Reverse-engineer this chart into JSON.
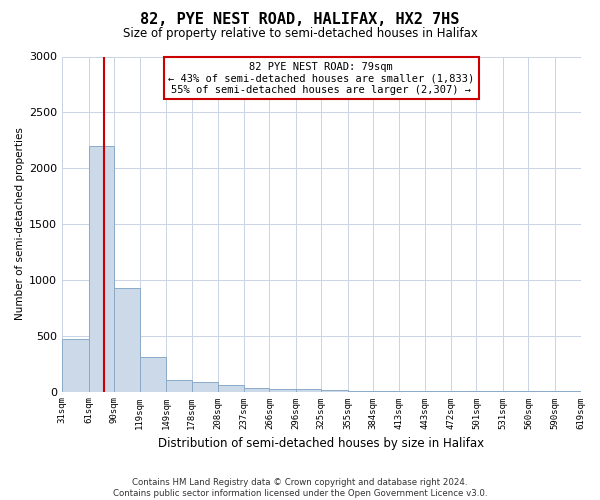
{
  "title": "82, PYE NEST ROAD, HALIFAX, HX2 7HS",
  "subtitle": "Size of property relative to semi-detached houses in Halifax",
  "xlabel": "Distribution of semi-detached houses by size in Halifax",
  "ylabel": "Number of semi-detached properties",
  "footer_line1": "Contains HM Land Registry data © Crown copyright and database right 2024.",
  "footer_line2": "Contains public sector information licensed under the Open Government Licence v3.0.",
  "bar_color": "#ccd9e8",
  "bar_edge_color": "#8aaac8",
  "red_line_color": "#cc0000",
  "annotation_box_edge": "#cc0000",
  "annotation_text_line1": "82 PYE NEST ROAD: 79sqm",
  "annotation_text_line2": "← 43% of semi-detached houses are smaller (1,833)",
  "annotation_text_line3": "55% of semi-detached houses are larger (2,307) →",
  "property_size_sqm": 79,
  "ylim": [
    0,
    3000
  ],
  "yticks": [
    0,
    500,
    1000,
    1500,
    2000,
    2500,
    3000
  ],
  "bin_edges": [
    31,
    61,
    90,
    119,
    149,
    178,
    208,
    237,
    266,
    296,
    325,
    355,
    384,
    413,
    443,
    472,
    501,
    531,
    560,
    590,
    619
  ],
  "bin_counts": [
    470,
    2200,
    930,
    310,
    100,
    90,
    60,
    30,
    20,
    20,
    10,
    5,
    5,
    3,
    2,
    2,
    1,
    1,
    1,
    1
  ]
}
